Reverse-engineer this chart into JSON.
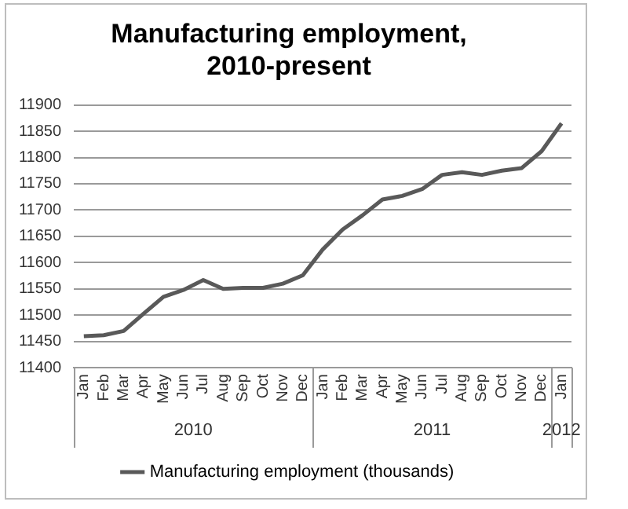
{
  "chart_data": {
    "type": "line",
    "title": "Manufacturing employment, 2010-present",
    "categories": [
      "Jan",
      "Feb",
      "Mar",
      "Apr",
      "May",
      "Jun",
      "Jul",
      "Aug",
      "Sep",
      "Oct",
      "Nov",
      "Dec",
      "Jan",
      "Feb",
      "Mar",
      "Apr",
      "May",
      "Jun",
      "Jul",
      "Aug",
      "Sep",
      "Oct",
      "Nov",
      "Dec",
      "Jan"
    ],
    "series": [
      {
        "name": "Manufacturing employment (thousands)",
        "color": "#595959",
        "values": [
          11460,
          11462,
          11470,
          11503,
          11535,
          11548,
          11567,
          11550,
          11552,
          11552,
          11560,
          11576,
          11625,
          11663,
          11690,
          11720,
          11727,
          11740,
          11767,
          11772,
          11767,
          11775,
          11780,
          11812,
          11865
        ]
      }
    ],
    "ylim": [
      11400,
      11900
    ],
    "yticks": [
      11400,
      11450,
      11500,
      11550,
      11600,
      11650,
      11700,
      11750,
      11800,
      11850,
      11900
    ],
    "annotations": [
      "2010",
      "2011",
      "2012"
    ],
    "grid": "y",
    "legend": "bottom",
    "marker": "none",
    "line_style": "solid"
  }
}
